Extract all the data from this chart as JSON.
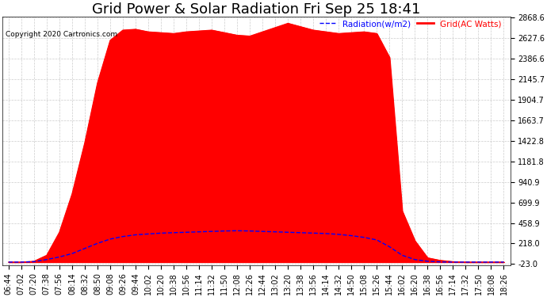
{
  "title": "Grid Power & Solar Radiation Fri Sep 25 18:41",
  "copyright": "Copyright 2020 Cartronics.com",
  "legend_radiation": "Radiation(w/m2)",
  "legend_grid": "Grid(AC Watts)",
  "ymin": -23.0,
  "ymax": 2868.6,
  "yticks": [
    2868.6,
    2627.6,
    2386.6,
    2145.7,
    1904.7,
    1663.7,
    1422.8,
    1181.8,
    940.9,
    699.9,
    458.9,
    218.0,
    -23.0
  ],
  "xtick_labels": [
    "06:44",
    "07:02",
    "07:20",
    "07:38",
    "07:56",
    "08:14",
    "08:32",
    "08:50",
    "09:08",
    "09:26",
    "09:44",
    "10:02",
    "10:20",
    "10:38",
    "10:56",
    "11:14",
    "11:32",
    "11:50",
    "12:08",
    "12:26",
    "12:44",
    "13:02",
    "13:20",
    "13:38",
    "13:56",
    "14:14",
    "14:32",
    "14:50",
    "15:08",
    "15:26",
    "15:44",
    "16:02",
    "16:20",
    "16:38",
    "16:56",
    "17:14",
    "17:32",
    "17:50",
    "18:08",
    "18:26"
  ],
  "background_color": "#ffffff",
  "grid_color": "#cccccc",
  "red_color": "#ff0000",
  "blue_color": "#0000ff",
  "title_fontsize": 13,
  "tick_fontsize": 7,
  "grid_power": [
    0,
    0,
    10,
    80,
    350,
    800,
    1400,
    2100,
    2600,
    2720,
    2730,
    2700,
    2690,
    2680,
    2700,
    2710,
    2720,
    2690,
    2660,
    2650,
    2700,
    2750,
    2800,
    2760,
    2720,
    2700,
    2680,
    2690,
    2700,
    2680,
    2400,
    600,
    250,
    50,
    20,
    5,
    0,
    0,
    0,
    0
  ],
  "radiation": [
    0,
    0,
    5,
    30,
    60,
    100,
    160,
    220,
    270,
    300,
    320,
    330,
    340,
    345,
    350,
    355,
    360,
    365,
    368,
    365,
    360,
    355,
    350,
    345,
    340,
    335,
    325,
    310,
    290,
    260,
    180,
    80,
    30,
    10,
    2,
    0,
    0,
    0,
    0,
    0
  ]
}
